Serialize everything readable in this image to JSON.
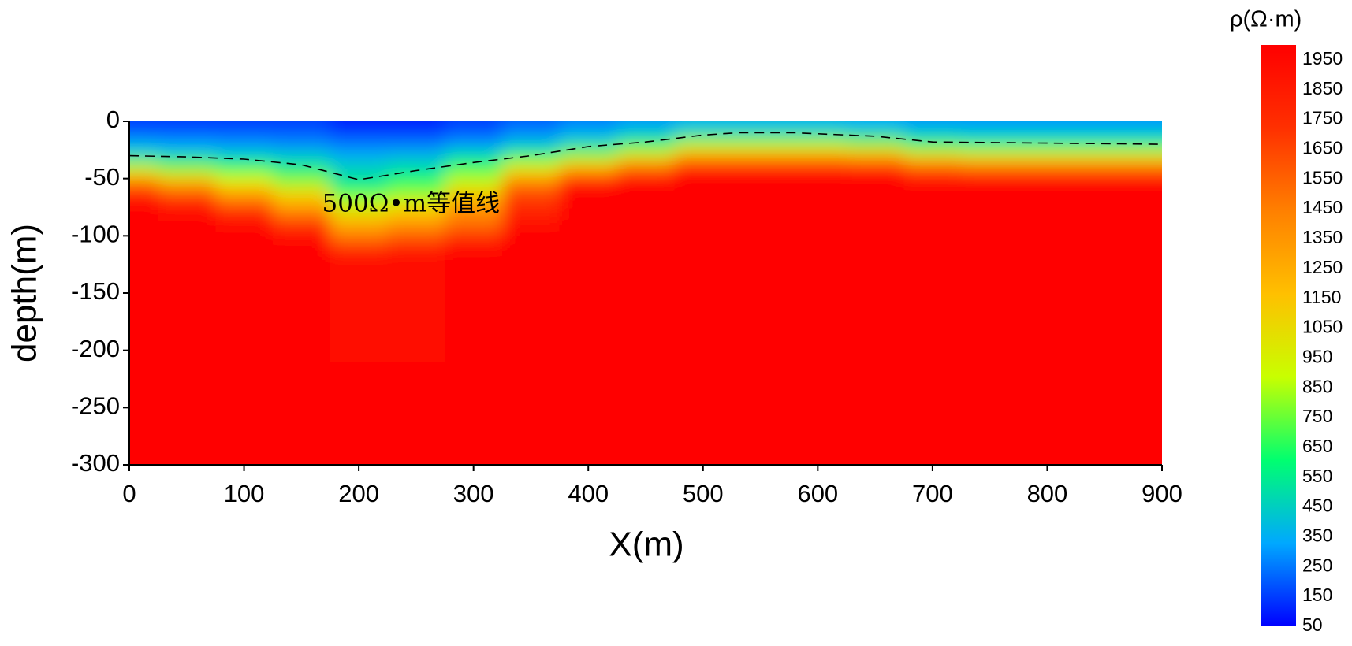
{
  "chart_data": {
    "type": "heatmap",
    "xlabel": "X(m)",
    "ylabel": "depth(m)",
    "xlim": [
      0,
      900
    ],
    "ylim": [
      -300,
      0
    ],
    "xticks": [
      0,
      100,
      200,
      300,
      400,
      500,
      600,
      700,
      800,
      900
    ],
    "yticks": [
      0,
      -50,
      -100,
      -150,
      -200,
      -250,
      -300
    ],
    "x": [
      0,
      50,
      100,
      150,
      200,
      250,
      300,
      350,
      400,
      450,
      500,
      550,
      600,
      650,
      700,
      750,
      800,
      850,
      900
    ],
    "y": [
      0,
      -10,
      -20,
      -30,
      -40,
      -50,
      -60,
      -70,
      -80,
      -90,
      -100,
      -110,
      -120,
      -300
    ],
    "z": [
      [
        150,
        150,
        150,
        150,
        100,
        100,
        150,
        200,
        250,
        300,
        350,
        350,
        350,
        330,
        300,
        300,
        300,
        300,
        300
      ],
      [
        200,
        200,
        200,
        200,
        150,
        150,
        200,
        280,
        350,
        420,
        500,
        500,
        500,
        480,
        420,
        400,
        400,
        400,
        400
      ],
      [
        350,
        320,
        300,
        280,
        250,
        250,
        300,
        400,
        500,
        650,
        850,
        850,
        850,
        800,
        650,
        600,
        600,
        600,
        600
      ],
      [
        500,
        480,
        450,
        420,
        350,
        380,
        500,
        650,
        800,
        1000,
        1300,
        1300,
        1300,
        1250,
        1050,
        1000,
        1000,
        1000,
        1000
      ],
      [
        850,
        750,
        650,
        550,
        450,
        480,
        650,
        950,
        1200,
        1500,
        1800,
        1800,
        1800,
        1750,
        1550,
        1500,
        1500,
        1500,
        1500
      ],
      [
        1300,
        1100,
        900,
        750,
        500,
        600,
        850,
        1300,
        1700,
        1900,
        2000,
        2000,
        2000,
        2000,
        1950,
        1950,
        1950,
        1950,
        1950
      ],
      [
        1700,
        1500,
        1200,
        1000,
        650,
        750,
        1050,
        1600,
        2000,
        2000,
        2000,
        2000,
        2000,
        2000,
        2000,
        2000,
        2000,
        2000,
        2000
      ],
      [
        1950,
        1800,
        1500,
        1200,
        850,
        950,
        1250,
        1700,
        2000,
        2000,
        2000,
        2000,
        2000,
        2000,
        2000,
        2000,
        2000,
        2000,
        2000
      ],
      [
        2000,
        1950,
        1800,
        1450,
        1050,
        1150,
        1400,
        1800,
        2000,
        2000,
        2000,
        2000,
        2000,
        2000,
        2000,
        2000,
        2000,
        2000,
        2000
      ],
      [
        2000,
        2000,
        1950,
        1700,
        1250,
        1350,
        1500,
        1950,
        2000,
        2000,
        2000,
        2000,
        2000,
        2000,
        2000,
        2000,
        2000,
        2000,
        2000
      ],
      [
        2000,
        2000,
        2000,
        1900,
        1450,
        1550,
        1700,
        2000,
        2000,
        2000,
        2000,
        2000,
        2000,
        2000,
        2000,
        2000,
        2000,
        2000,
        2000
      ],
      [
        2000,
        2000,
        2000,
        2000,
        1700,
        1800,
        1950,
        2000,
        2000,
        2000,
        2000,
        2000,
        2000,
        2000,
        2000,
        2000,
        2000,
        2000,
        2000
      ],
      [
        2000,
        2000,
        2000,
        2000,
        1900,
        1950,
        2000,
        2000,
        2000,
        2000,
        2000,
        2000,
        2000,
        2000,
        2000,
        2000,
        2000,
        2000,
        2000
      ],
      [
        2000,
        2000,
        2000,
        2000,
        2000,
        2000,
        2000,
        2000,
        2000,
        2000,
        2000,
        2000,
        2000,
        2000,
        2000,
        2000,
        2000,
        2000,
        2000
      ]
    ],
    "colorbar": {
      "title": "ρ(Ω·m)",
      "zlim": [
        50,
        2000
      ],
      "ticks": [
        50,
        150,
        250,
        350,
        450,
        550,
        650,
        750,
        850,
        950,
        1050,
        1150,
        1250,
        1350,
        1450,
        1550,
        1650,
        1750,
        1850,
        1950
      ],
      "colors": [
        "#0000ff",
        "#00a8ff",
        "#00ff70",
        "#c8ff00",
        "#ffc000",
        "#ff8000",
        "#ff3000",
        "#ff0000"
      ]
    },
    "contour": {
      "label": "500Ω•m等值线",
      "color": "#000000",
      "x": [
        0,
        50,
        100,
        150,
        200,
        250,
        300,
        350,
        400,
        450,
        500,
        530,
        580,
        650,
        700,
        800,
        900
      ],
      "y": [
        -30,
        -31,
        -33,
        -38,
        -51,
        -43,
        -36,
        -30,
        -22,
        -18,
        -12,
        -10,
        -10,
        -13,
        -18,
        -19,
        -20
      ]
    }
  }
}
